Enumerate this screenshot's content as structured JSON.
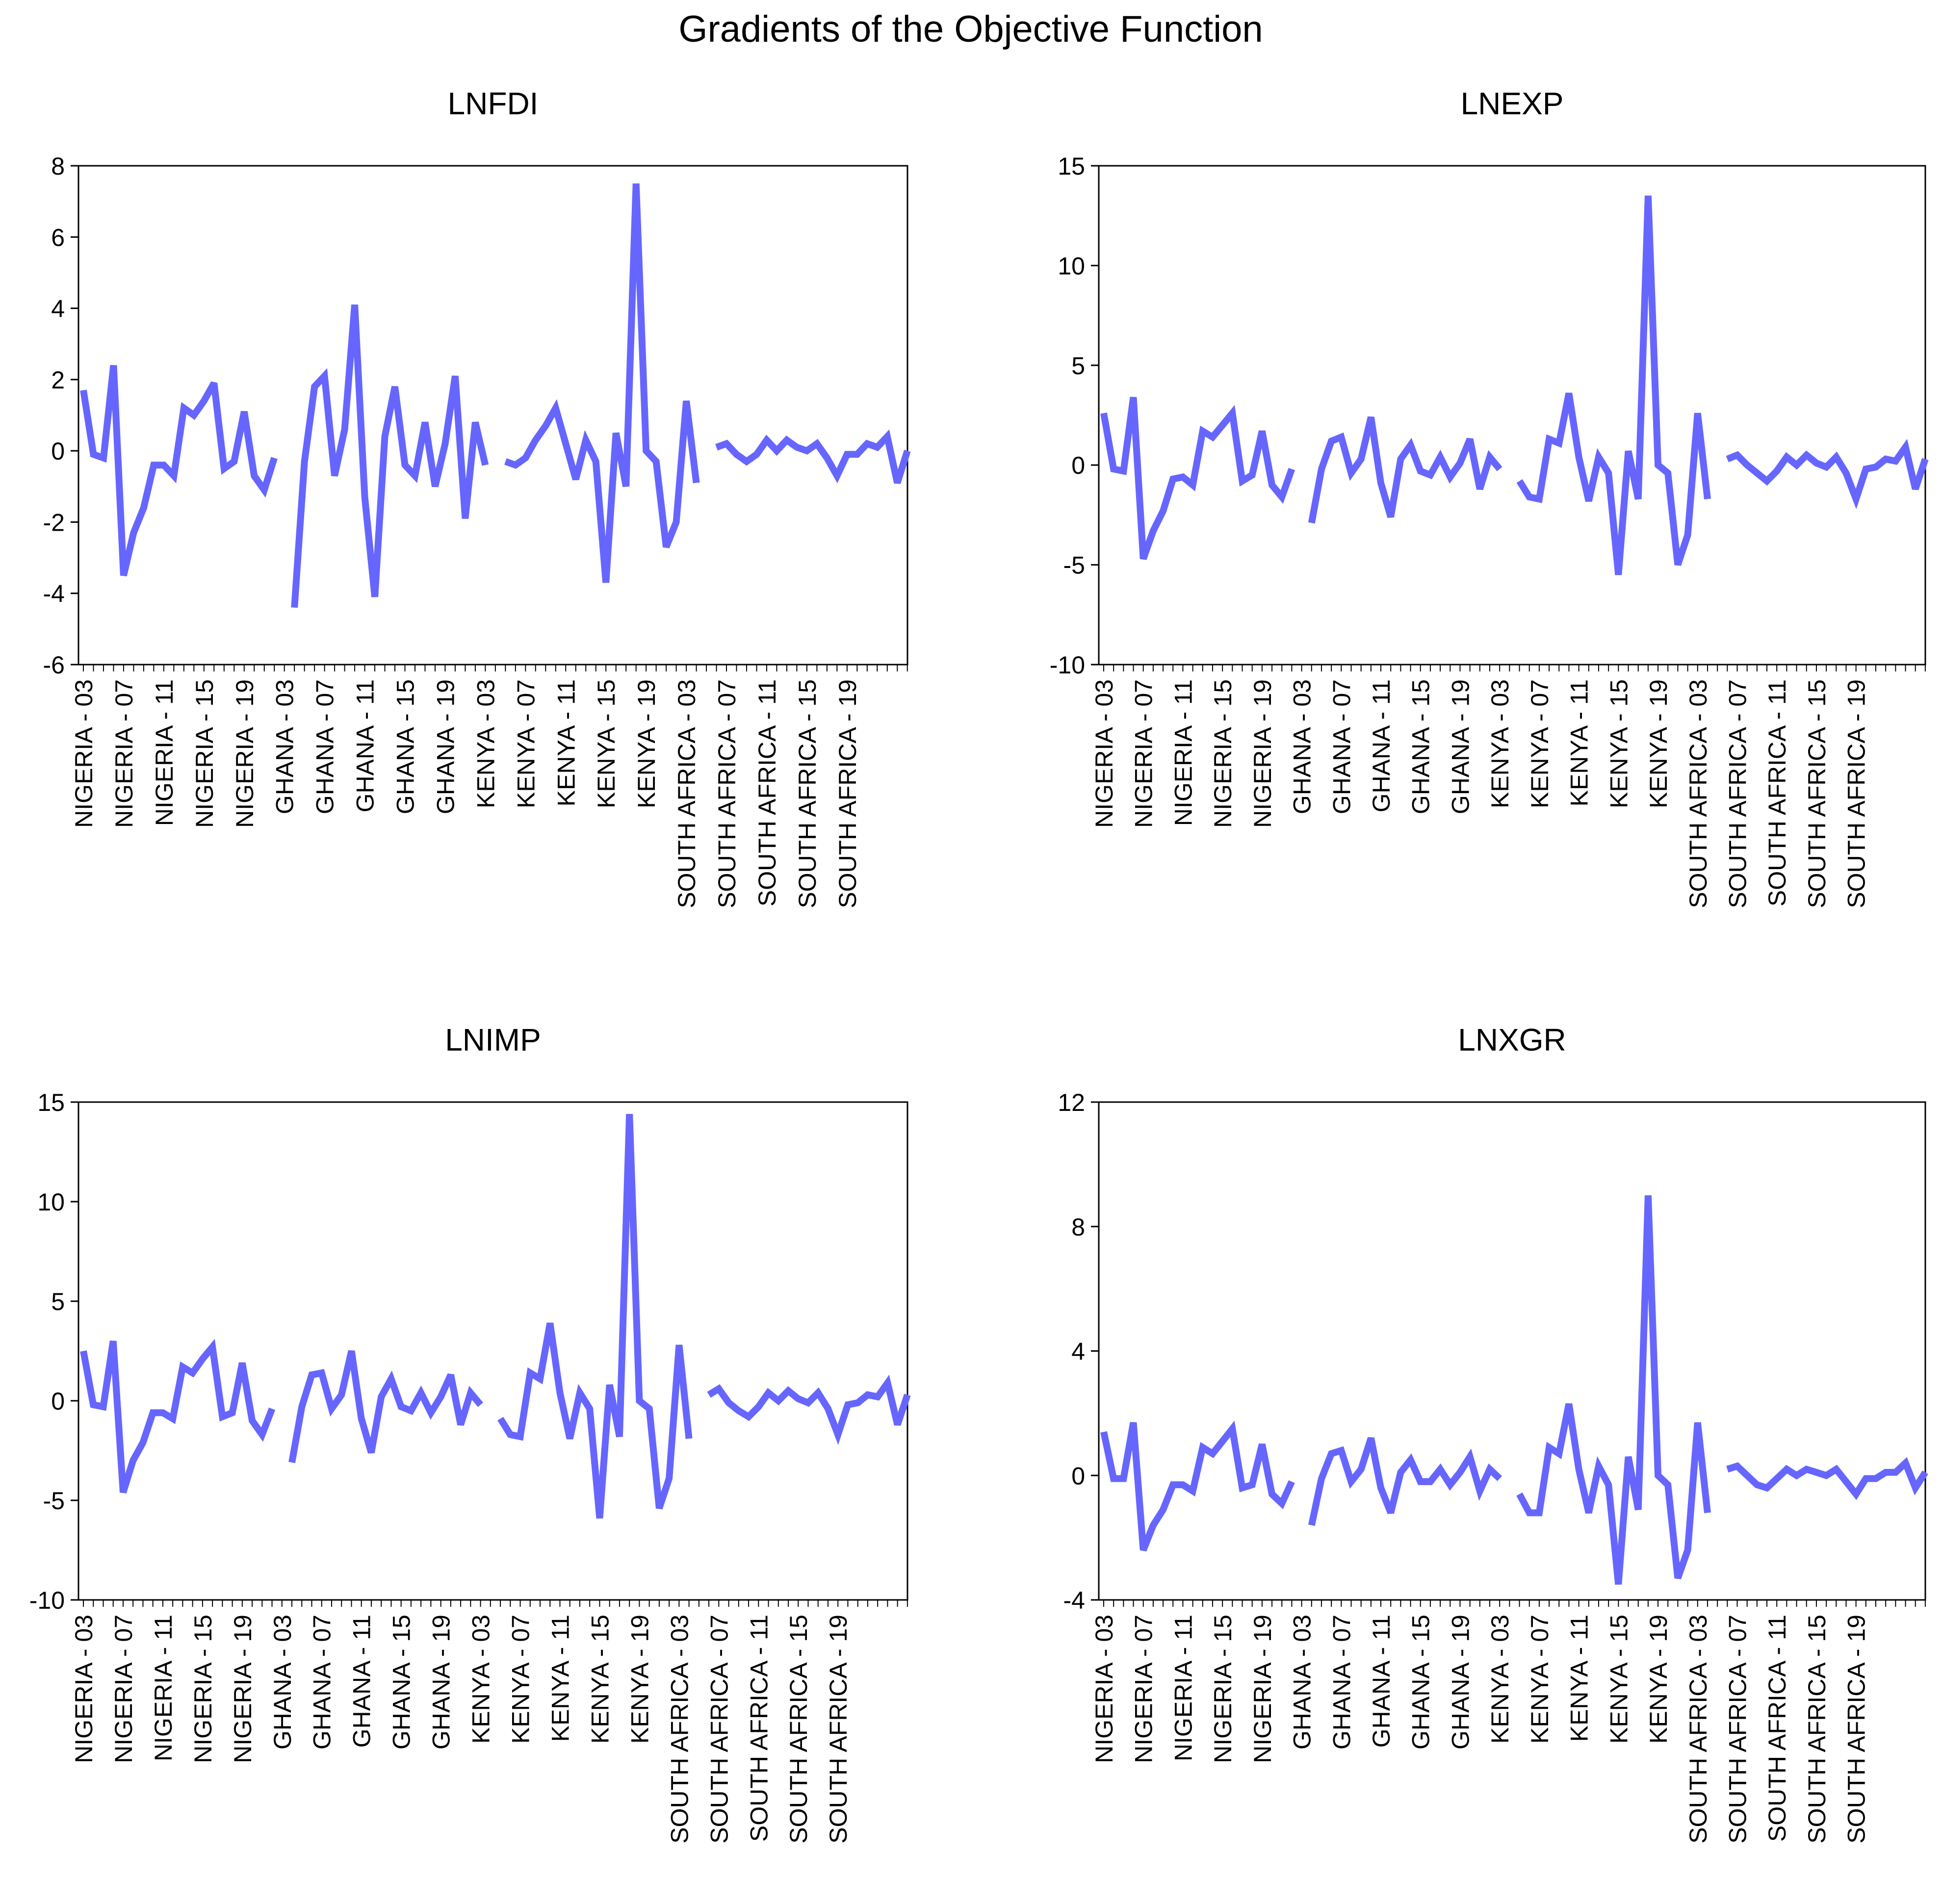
{
  "figure": {
    "title": "Gradients of the Objective Function"
  },
  "style": {
    "line_color": "#6666ff",
    "axis_color": "#000000"
  },
  "chart_data": [
    {
      "type": "line",
      "title": "LNFDI",
      "ylim": [
        -6,
        8
      ],
      "yticks": [
        -6,
        -4,
        -2,
        0,
        2,
        4,
        6,
        8
      ],
      "grid": false,
      "tick_labels": [
        "NIGERIA - 03",
        "NIGERIA - 07",
        "NIGERIA - 11",
        "NIGERIA - 15",
        "NIGERIA - 19",
        "GHANA - 03",
        "GHANA - 07",
        "GHANA - 11",
        "GHANA - 15",
        "GHANA - 19",
        "KENYA - 03",
        "KENYA - 07",
        "KENYA - 11",
        "KENYA - 15",
        "KENYA - 19",
        "SOUTH AFRICA - 03",
        "SOUTH AFRICA - 07",
        "SOUTH AFRICA - 11",
        "SOUTH AFRICA - 15",
        "SOUTH AFRICA - 19"
      ],
      "series": [
        {
          "values": [
            1.7,
            -0.1,
            -0.2,
            2.4,
            -3.5,
            -2.3,
            -1.6,
            -0.4,
            -0.4,
            -0.7,
            1.2,
            1.0,
            1.4,
            1.9,
            -0.5,
            -0.3,
            1.1,
            -0.7,
            -1.1,
            -0.2,
            null,
            -4.4,
            -0.3,
            1.8,
            2.1,
            -0.7,
            0.6,
            4.1,
            -1.3,
            -4.1,
            0.4,
            1.8,
            -0.4,
            -0.7,
            0.8,
            -1.0,
            0.2,
            2.1,
            -1.9,
            0.8,
            -0.4,
            null,
            -0.3,
            -0.4,
            -0.2,
            0.3,
            0.7,
            1.2,
            0.2,
            -0.8,
            0.3,
            -0.3,
            -3.7,
            0.5,
            -1.0,
            7.5,
            0.0,
            -0.3,
            -2.7,
            -2.0,
            1.4,
            -0.9,
            null,
            0.1,
            0.2,
            -0.1,
            -0.3,
            -0.1,
            0.3,
            0.0,
            0.3,
            0.1,
            0.0,
            0.2,
            -0.2,
            -0.7,
            -0.1,
            -0.1,
            0.2,
            0.1,
            0.4,
            -0.9,
            0.0
          ]
        }
      ]
    },
    {
      "type": "line",
      "title": "LNEXP",
      "ylim": [
        -10,
        15
      ],
      "yticks": [
        -10,
        -5,
        0,
        5,
        10,
        15
      ],
      "grid": false,
      "tick_labels": [
        "NIGERIA - 03",
        "NIGERIA - 07",
        "NIGERIA - 11",
        "NIGERIA - 15",
        "NIGERIA - 19",
        "GHANA - 03",
        "GHANA - 07",
        "GHANA - 11",
        "GHANA - 15",
        "GHANA - 19",
        "KENYA - 03",
        "KENYA - 07",
        "KENYA - 11",
        "KENYA - 15",
        "KENYA - 19",
        "SOUTH AFRICA - 03",
        "SOUTH AFRICA - 07",
        "SOUTH AFRICA - 11",
        "SOUTH AFRICA - 15",
        "SOUTH AFRICA - 19"
      ],
      "series": [
        {
          "values": [
            2.6,
            -0.2,
            -0.3,
            3.4,
            -4.7,
            -3.3,
            -2.3,
            -0.7,
            -0.6,
            -1.0,
            1.7,
            1.4,
            2.0,
            2.6,
            -0.8,
            -0.5,
            1.7,
            -1.0,
            -1.6,
            -0.2,
            null,
            -2.9,
            -0.2,
            1.2,
            1.4,
            -0.4,
            0.3,
            2.4,
            -0.9,
            -2.6,
            0.3,
            1.0,
            -0.3,
            -0.5,
            0.4,
            -0.6,
            0.1,
            1.3,
            -1.2,
            0.4,
            -0.2,
            null,
            -0.8,
            -1.6,
            -1.7,
            1.3,
            1.1,
            3.6,
            0.4,
            -1.8,
            0.4,
            -0.4,
            -5.5,
            0.7,
            -1.7,
            13.5,
            0.0,
            -0.4,
            -5.0,
            -3.5,
            2.6,
            -1.7,
            null,
            0.3,
            0.5,
            0.0,
            -0.4,
            -0.8,
            -0.3,
            0.4,
            0.0,
            0.5,
            0.1,
            -0.1,
            0.4,
            -0.4,
            -1.7,
            -0.2,
            -0.1,
            0.3,
            0.2,
            0.9,
            -1.2,
            0.3
          ]
        }
      ]
    },
    {
      "type": "line",
      "title": "LNIMP",
      "ylim": [
        -10,
        15
      ],
      "yticks": [
        -10,
        -5,
        0,
        5,
        10,
        15
      ],
      "grid": false,
      "tick_labels": [
        "NIGERIA - 03",
        "NIGERIA - 07",
        "NIGERIA - 11",
        "NIGERIA - 15",
        "NIGERIA - 19",
        "GHANA - 03",
        "GHANA - 07",
        "GHANA - 11",
        "GHANA - 15",
        "GHANA - 19",
        "KENYA - 03",
        "KENYA - 07",
        "KENYA - 11",
        "KENYA - 15",
        "KENYA - 19",
        "SOUTH AFRICA - 03",
        "SOUTH AFRICA - 07",
        "SOUTH AFRICA - 11",
        "SOUTH AFRICA - 15",
        "SOUTH AFRICA - 19"
      ],
      "series": [
        {
          "values": [
            2.5,
            -0.2,
            -0.3,
            3.0,
            -4.6,
            -3.0,
            -2.1,
            -0.6,
            -0.6,
            -0.9,
            1.7,
            1.4,
            2.1,
            2.7,
            -0.8,
            -0.6,
            1.9,
            -1.0,
            -1.7,
            -0.4,
            null,
            -3.1,
            -0.3,
            1.3,
            1.4,
            -0.4,
            0.3,
            2.5,
            -0.9,
            -2.6,
            0.2,
            1.1,
            -0.3,
            -0.5,
            0.4,
            -0.6,
            0.2,
            1.3,
            -1.2,
            0.4,
            -0.2,
            null,
            -0.9,
            -1.7,
            -1.8,
            1.4,
            1.1,
            3.9,
            0.4,
            -1.9,
            0.4,
            -0.4,
            -5.9,
            0.8,
            -1.8,
            14.4,
            0.0,
            -0.4,
            -5.4,
            -3.9,
            2.8,
            -1.9,
            null,
            0.3,
            0.6,
            -0.1,
            -0.5,
            -0.8,
            -0.3,
            0.4,
            0.0,
            0.5,
            0.1,
            -0.1,
            0.4,
            -0.4,
            -1.7,
            -0.2,
            -0.1,
            0.3,
            0.2,
            0.9,
            -1.2,
            0.3
          ]
        }
      ]
    },
    {
      "type": "line",
      "title": "LNXGR",
      "ylim": [
        -4,
        12
      ],
      "yticks": [
        -4,
        0,
        4,
        8,
        12
      ],
      "grid": false,
      "tick_labels": [
        "NIGERIA - 03",
        "NIGERIA - 07",
        "NIGERIA - 11",
        "NIGERIA - 15",
        "NIGERIA - 19",
        "GHANA - 03",
        "GHANA - 07",
        "GHANA - 11",
        "GHANA - 15",
        "GHANA - 19",
        "KENYA - 03",
        "KENYA - 07",
        "KENYA - 11",
        "KENYA - 15",
        "KENYA - 19",
        "SOUTH AFRICA - 03",
        "SOUTH AFRICA - 07",
        "SOUTH AFRICA - 11",
        "SOUTH AFRICA - 15",
        "SOUTH AFRICA - 19"
      ],
      "series": [
        {
          "values": [
            1.4,
            -0.1,
            -0.1,
            1.7,
            -2.4,
            -1.6,
            -1.1,
            -0.3,
            -0.3,
            -0.5,
            0.9,
            0.7,
            1.1,
            1.5,
            -0.4,
            -0.3,
            1.0,
            -0.6,
            -0.9,
            -0.2,
            null,
            -1.6,
            -0.1,
            0.7,
            0.8,
            -0.2,
            0.2,
            1.2,
            -0.4,
            -1.2,
            0.1,
            0.5,
            -0.2,
            -0.2,
            0.2,
            -0.3,
            0.1,
            0.6,
            -0.5,
            0.2,
            -0.1,
            null,
            -0.6,
            -1.2,
            -1.2,
            0.9,
            0.7,
            2.3,
            0.2,
            -1.2,
            0.3,
            -0.3,
            -3.5,
            0.6,
            -1.1,
            9.0,
            0.0,
            -0.3,
            -3.3,
            -2.4,
            1.7,
            -1.2,
            null,
            0.2,
            0.3,
            0.0,
            -0.3,
            -0.4,
            -0.1,
            0.2,
            0.0,
            0.2,
            0.1,
            0.0,
            0.2,
            -0.2,
            -0.6,
            -0.1,
            -0.1,
            0.1,
            0.1,
            0.4,
            -0.4,
            0.1
          ]
        }
      ]
    }
  ]
}
